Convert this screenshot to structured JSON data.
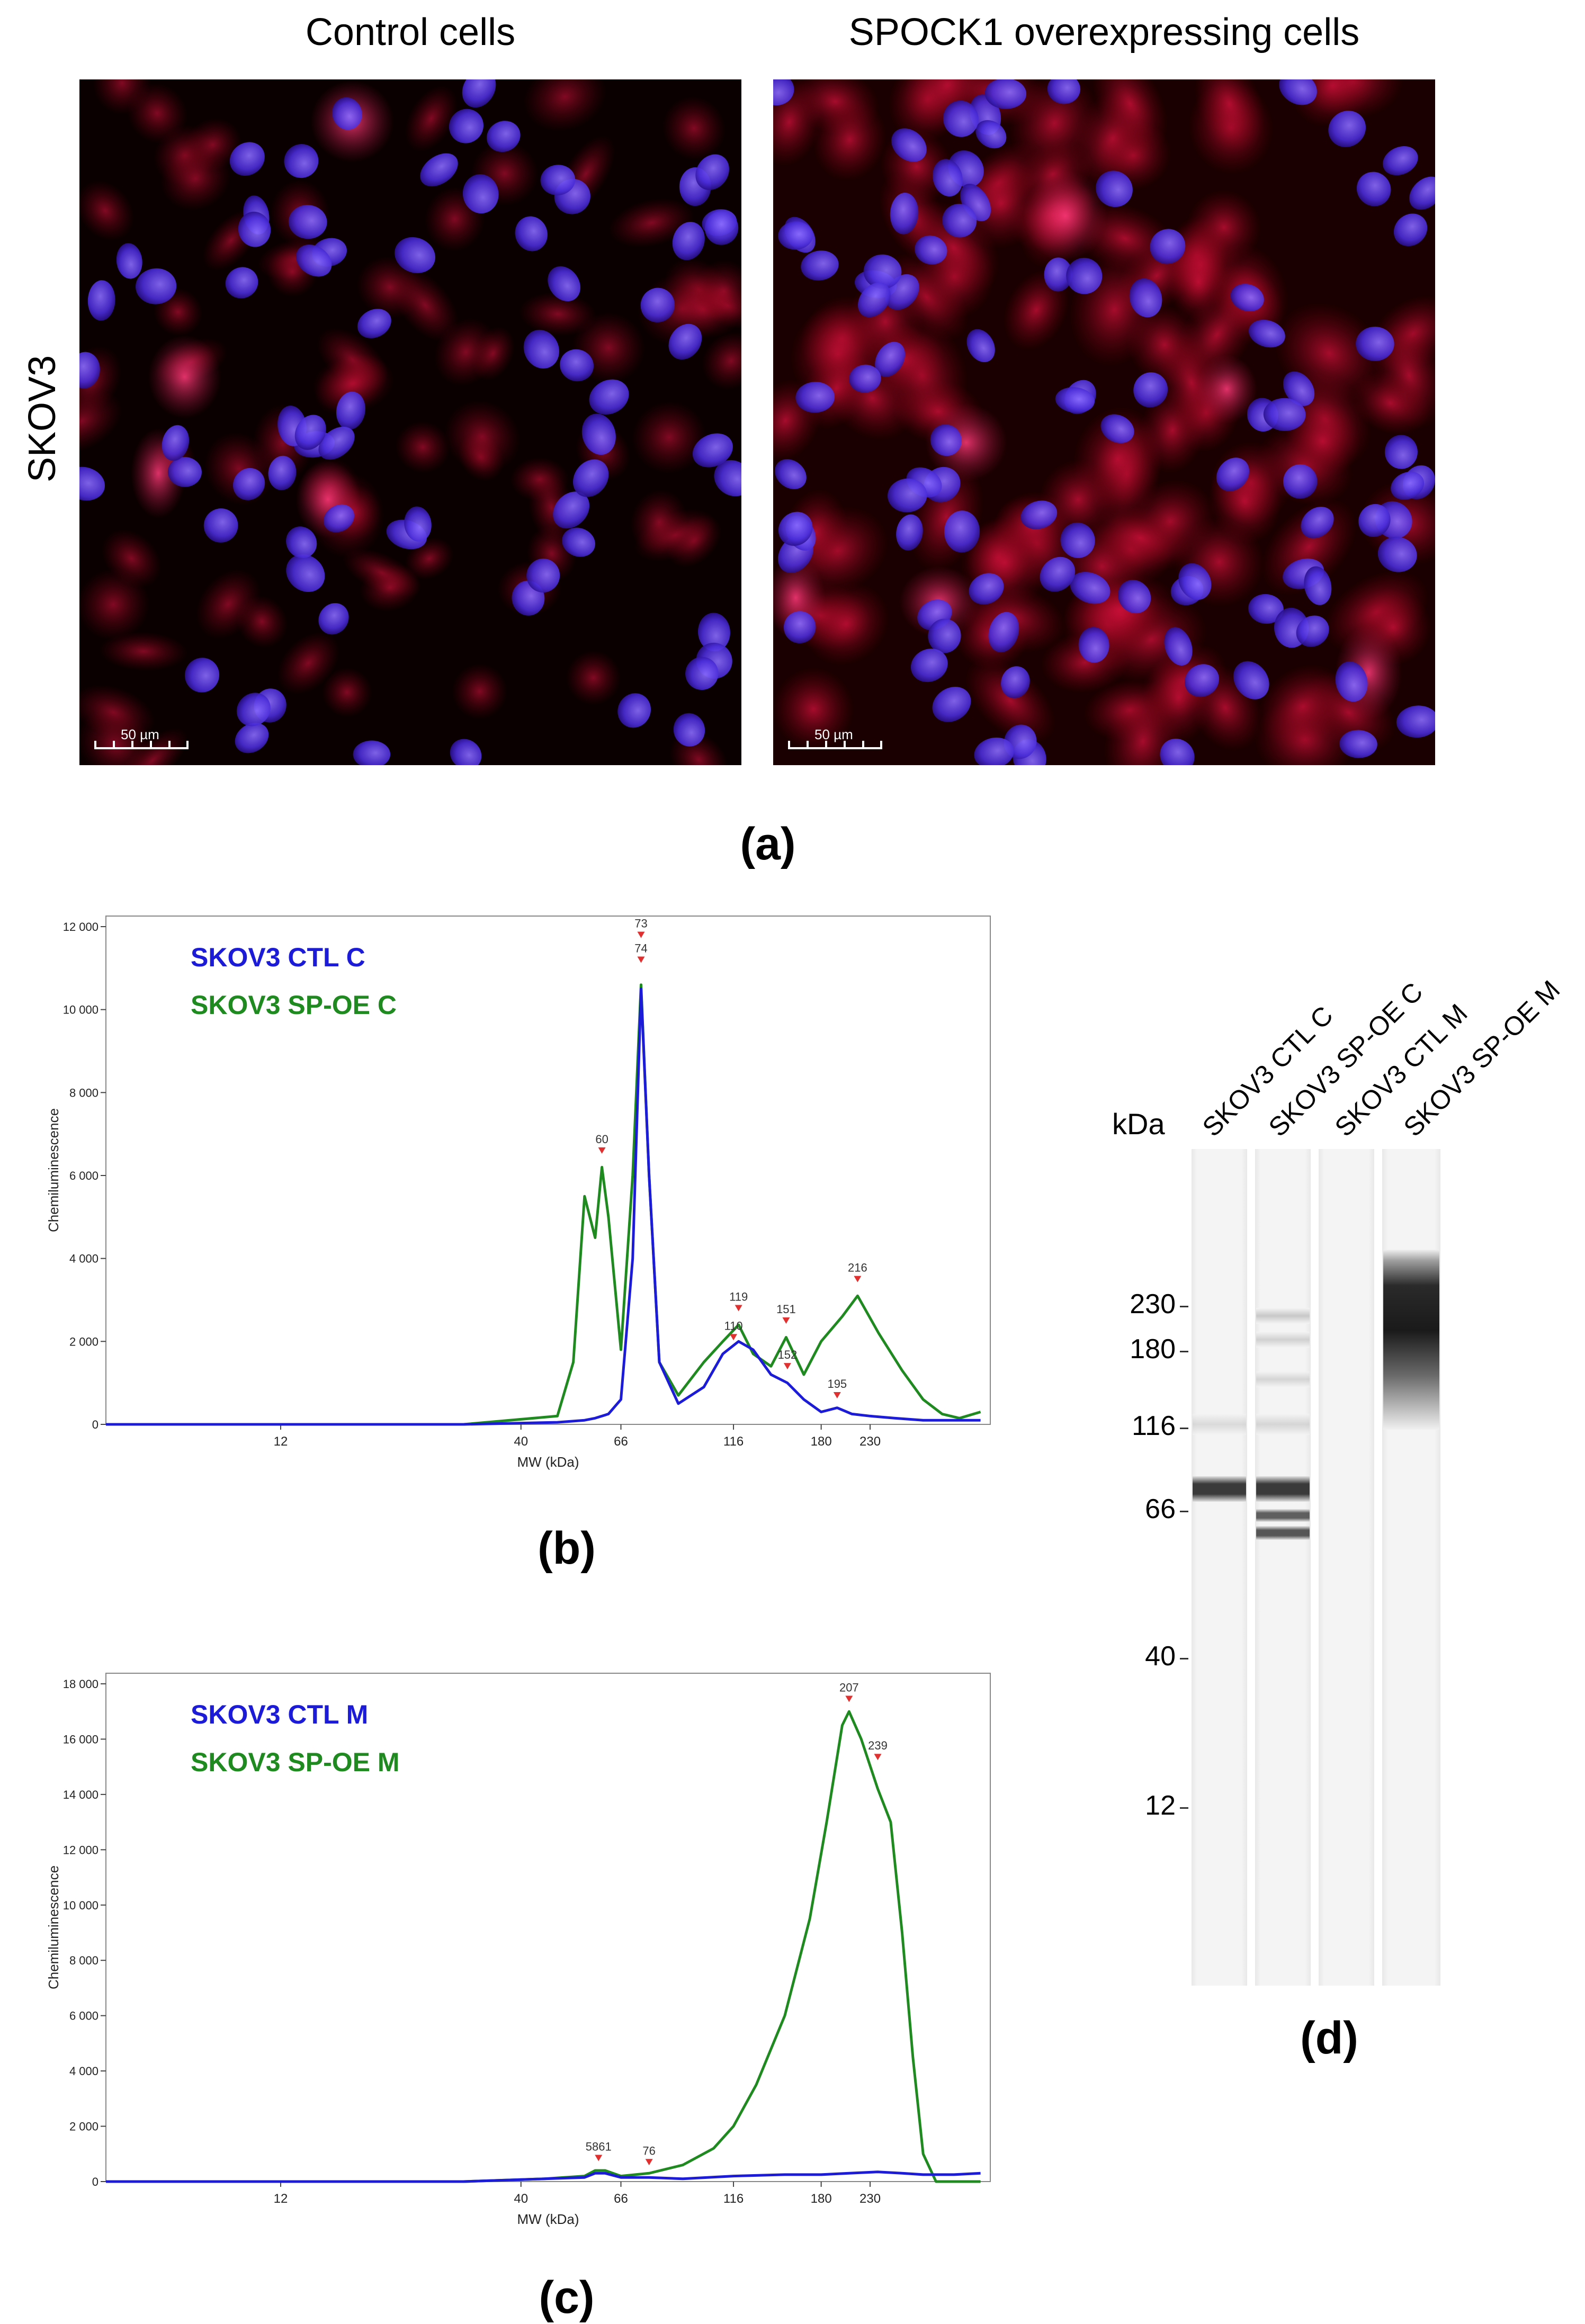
{
  "panel_a": {
    "title_left": "Control cells",
    "title_right": "SPOCK1 overexpressing cells",
    "row_label": "SKOV3",
    "scalebar_label": "50 µm",
    "label": "(a)"
  },
  "chart_data": [
    {
      "type": "line",
      "panel": "(b)",
      "xlabel": "MW (kDa)",
      "ylabel": "Chemiluminescence",
      "x_ticks": [
        "12",
        "40",
        "66",
        "116",
        "180",
        "230"
      ],
      "y_ticks": [
        "0",
        "2 000",
        "4 000",
        "6 000",
        "8 000",
        "10 000",
        "12 000"
      ],
      "ylim": [
        0,
        12000
      ],
      "series": [
        {
          "name": "SKOV3 CTL C",
          "color": "#1c1cd8",
          "x": [
            5,
            30,
            48,
            55,
            58,
            62,
            66,
            70,
            73,
            76,
            80,
            88,
            100,
            110,
            119,
            128,
            140,
            152,
            165,
            180,
            195,
            210,
            230,
            260,
            300,
            350,
            400
          ],
          "y": [
            0,
            0,
            50,
            100,
            150,
            250,
            600,
            4000,
            10500,
            6000,
            1500,
            500,
            900,
            1700,
            2000,
            1800,
            1200,
            1000,
            600,
            300,
            400,
            250,
            200,
            150,
            100,
            100,
            100
          ]
        },
        {
          "name": "SKOV3 SP-OE C",
          "color": "#1f8a1f",
          "x": [
            5,
            30,
            48,
            52,
            55,
            58,
            60,
            62,
            66,
            70,
            73,
            76,
            80,
            88,
            100,
            110,
            119,
            128,
            140,
            151,
            165,
            180,
            200,
            216,
            240,
            270,
            300,
            330,
            360,
            400
          ],
          "y": [
            0,
            0,
            200,
            1500,
            5500,
            4500,
            6200,
            5000,
            1800,
            6000,
            10600,
            6000,
            1500,
            700,
            1500,
            2000,
            2400,
            1700,
            1400,
            2100,
            1200,
            2000,
            2600,
            3100,
            2200,
            1300,
            600,
            250,
            150,
            300
          ]
        }
      ],
      "peak_labels": [
        "73",
        "74",
        "60",
        "119",
        "151",
        "110",
        "152",
        "195",
        "216"
      ]
    },
    {
      "type": "line",
      "panel": "(c)",
      "xlabel": "MW (kDa)",
      "ylabel": "Chemiluminescence",
      "x_ticks": [
        "12",
        "40",
        "66",
        "116",
        "180",
        "230"
      ],
      "y_ticks": [
        "0",
        "2 000",
        "4 000",
        "6 000",
        "8 000",
        "10 000",
        "12 000",
        "14 000",
        "16 000",
        "18 000"
      ],
      "ylim": [
        0,
        18000
      ],
      "series": [
        {
          "name": "SKOV3 CTL M",
          "color": "#1c1cd8",
          "x": [
            5,
            30,
            45,
            55,
            58,
            61,
            66,
            76,
            90,
            116,
            150,
            180,
            207,
            239,
            270,
            300,
            350,
            400
          ],
          "y": [
            0,
            0,
            100,
            150,
            300,
            300,
            150,
            150,
            100,
            200,
            250,
            250,
            300,
            350,
            300,
            250,
            250,
            300
          ]
        },
        {
          "name": "SKOV3 SP-OE M",
          "color": "#1f8a1f",
          "x": [
            5,
            30,
            45,
            55,
            58,
            61,
            66,
            76,
            90,
            105,
            116,
            130,
            150,
            170,
            185,
            200,
            207,
            220,
            239,
            255,
            270,
            285,
            300,
            320,
            350,
            400
          ],
          "y": [
            0,
            0,
            100,
            200,
            400,
            400,
            200,
            300,
            600,
            1200,
            2000,
            3500,
            6000,
            9500,
            13000,
            16500,
            17000,
            16000,
            14200,
            13000,
            9000,
            4500,
            1000,
            0,
            0,
            0
          ]
        }
      ],
      "peak_labels": [
        "5861",
        "76",
        "207",
        "239"
      ]
    }
  ],
  "panel_b": {
    "label": "(b)"
  },
  "panel_c": {
    "label": "(c)"
  },
  "panel_d": {
    "label": "(d)",
    "kda_title": "kDa",
    "lanes": [
      "SKOV3 CTL C",
      "SKOV3 SP-OE C",
      "SKOV3 CTL M",
      "SKOV3 SP-OE M"
    ],
    "kda_ticks": [
      "230",
      "180",
      "116",
      "66",
      "40",
      "12"
    ]
  }
}
